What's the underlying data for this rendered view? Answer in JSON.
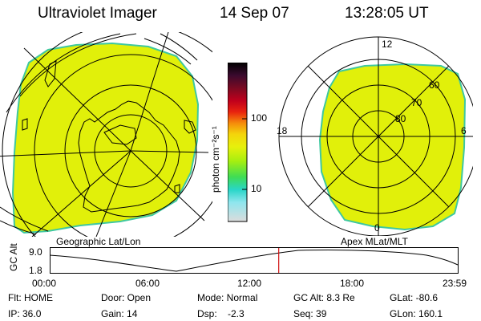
{
  "header": {
    "title": "Ultraviolet Imager",
    "date": "14 Sep 07",
    "time": "13:28:05 UT"
  },
  "colors": {
    "aurora_fill": "#e1f00a",
    "aurora_edge": "#3ec8a0",
    "timeline_marker": "#d01010"
  },
  "colorbar": {
    "unit_label": "photon cm⁻²s⁻¹",
    "ticks": [
      "100",
      "10"
    ],
    "stops": [
      "#000000",
      "#3a0a2e",
      "#7a0a22",
      "#c0001c",
      "#e8230f",
      "#f58a0b",
      "#f4d40b",
      "#e7f00c",
      "#a6ef10",
      "#3fdc54",
      "#29d6c8",
      "#8fe6ee",
      "#dcdcdc"
    ]
  },
  "left_map": {
    "caption": "Geographic Lat/Lon",
    "icon": "geographic-grid"
  },
  "right_map": {
    "caption": "Apex MLat/MLT",
    "mlt_labels": [
      "12",
      "18",
      "6",
      "0"
    ],
    "lat_labels": [
      "60",
      "70",
      "80"
    ]
  },
  "timeline": {
    "axis_title": "GC Alt",
    "y_top": "9.0",
    "y_bottom": "1.8",
    "x_ticks": [
      "00:00",
      "06:00",
      "12:00",
      "18:00",
      "23:59"
    ],
    "marker_time_hours": 13.47
  },
  "status": {
    "flt": "Flt: HOME",
    "ip": "IP: 36.0",
    "door": "Door: Open",
    "gain": "Gain: 14",
    "mode": "Mode: Normal",
    "dsp": "Dsp:    -2.3",
    "gc_alt": "GC Alt: 8.3 Re",
    "seq": "Seq: 39",
    "glat": "GLat: -80.6",
    "glon": "GLon: 160.1"
  }
}
